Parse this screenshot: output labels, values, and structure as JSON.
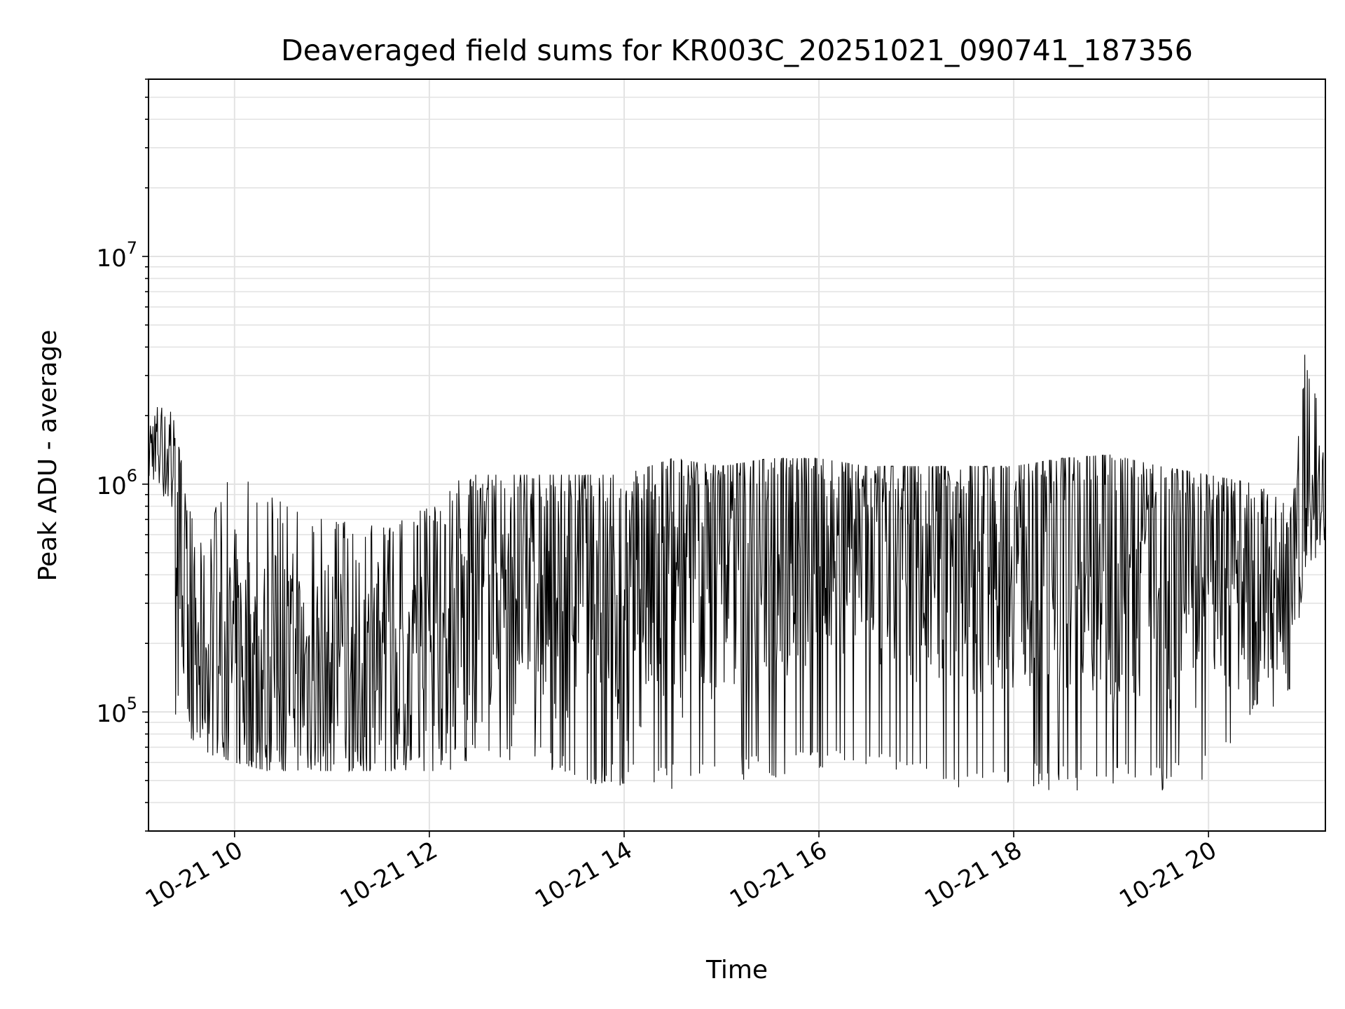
{
  "chart_data": {
    "type": "line",
    "title": "Deaveraged field sums for KR003C_20251021_090741_187356",
    "xlabel": "Time",
    "ylabel": "Peak ADU - average",
    "yscale": "log",
    "xlim": [
      "2025-10-21 09:07",
      "2025-10-21 21:12"
    ],
    "ylim": [
      30000,
      60000000
    ],
    "grid": true,
    "legend": "none",
    "line_color": "#000000",
    "x_ticks": [
      {
        "value": "2025-10-21 10:00",
        "label": "10-21 10"
      },
      {
        "value": "2025-10-21 12:00",
        "label": "10-21 12"
      },
      {
        "value": "2025-10-21 14:00",
        "label": "10-21 14"
      },
      {
        "value": "2025-10-21 16:00",
        "label": "10-21 16"
      },
      {
        "value": "2025-10-21 18:00",
        "label": "10-21 18"
      },
      {
        "value": "2025-10-21 20:00",
        "label": "10-21 20"
      }
    ],
    "y_ticks": [
      {
        "value": 100000,
        "base": "10",
        "exp": "5"
      },
      {
        "value": 1000000,
        "base": "10",
        "exp": "6"
      },
      {
        "value": 10000000,
        "base": "10",
        "exp": "7"
      }
    ],
    "series": [
      {
        "x": [
          "2025-10-21 09:07",
          "2025-10-21 09:12",
          "2025-10-21 09:17",
          "2025-10-21 09:22",
          "2025-10-21 09:30",
          "2025-10-21 09:45",
          "2025-10-21 10:00",
          "2025-10-21 10:20",
          "2025-10-21 10:40",
          "2025-10-21 11:00",
          "2025-10-21 11:20",
          "2025-10-21 11:40",
          "2025-10-21 12:00",
          "2025-10-21 12:20",
          "2025-10-21 12:40",
          "2025-10-21 13:00",
          "2025-10-21 13:30",
          "2025-10-21 14:00",
          "2025-10-21 14:30",
          "2025-10-21 15:00",
          "2025-10-21 15:30",
          "2025-10-21 16:00",
          "2025-10-21 16:30",
          "2025-10-21 17:00",
          "2025-10-21 17:30",
          "2025-10-21 18:00",
          "2025-10-21 18:30",
          "2025-10-21 19:00",
          "2025-10-21 19:30",
          "2025-10-21 20:00",
          "2025-10-21 20:30",
          "2025-10-21 20:50",
          "2025-10-21 21:00",
          "2025-10-21 21:12"
        ],
        "y": [
          1400000,
          1600000,
          1300000,
          1500000,
          200000,
          180000,
          170000,
          150000,
          160000,
          140000,
          150000,
          160000,
          170000,
          250000,
          400000,
          350000,
          380000,
          300000,
          400000,
          500000,
          550000,
          600000,
          580000,
          560000,
          520000,
          550000,
          560000,
          500000,
          450000,
          420000,
          380000,
          350000,
          650000,
          900000
        ],
        "y_min": [
          900000,
          1000000,
          800000,
          100000,
          80000,
          65000,
          60000,
          55000,
          55000,
          55000,
          55000,
          55000,
          55000,
          55000,
          55000,
          55000,
          50000,
          45000,
          45000,
          50000,
          50000,
          55000,
          50000,
          50000,
          45000,
          45000,
          45000,
          45000,
          45000,
          50000,
          90000,
          120000,
          450000,
          500000
        ],
        "y_max": [
          2500000,
          2400000,
          2300000,
          2000000,
          1000000,
          700000,
          1200000,
          900000,
          800000,
          750000,
          700000,
          700000,
          800000,
          1100000,
          1100000,
          1100000,
          1100000,
          1100000,
          1300000,
          1200000,
          1300000,
          1300000,
          1200000,
          1200000,
          1200000,
          1200000,
          1300000,
          1350000,
          1200000,
          1100000,
          1000000,
          800000,
          4300000,
          1600000
        ]
      }
    ]
  }
}
